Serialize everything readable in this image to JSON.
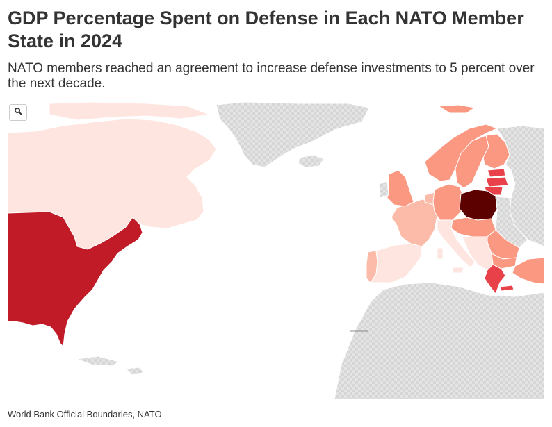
{
  "header": {
    "title": "GDP Percentage Spent on Defense in Each NATO Member State in 2024",
    "subtitle": "NATO members reached an agreement to increase defense investments to 5 percent over the next decade."
  },
  "map": {
    "type": "choropleth",
    "colors": {
      "no_data": "#dddddd",
      "low": "#fee5e0",
      "low_mid": "#fcbba9",
      "mid": "#fa9882",
      "high": "#e8414a",
      "very_high": "#c01b27",
      "highest": "#5c0000"
    },
    "regions": [
      {
        "name": "United States",
        "shade": "very_high"
      },
      {
        "name": "Canada",
        "shade": "low"
      },
      {
        "name": "Poland",
        "shade": "highest"
      },
      {
        "name": "Latvia",
        "shade": "high"
      },
      {
        "name": "Lithuania",
        "shade": "high"
      },
      {
        "name": "Estonia",
        "shade": "high"
      },
      {
        "name": "Greece",
        "shade": "high"
      },
      {
        "name": "Finland",
        "shade": "mid"
      },
      {
        "name": "United Kingdom",
        "shade": "mid"
      },
      {
        "name": "Sweden",
        "shade": "mid"
      },
      {
        "name": "Norway",
        "shade": "mid"
      },
      {
        "name": "Germany",
        "shade": "mid"
      },
      {
        "name": "Romania",
        "shade": "mid"
      },
      {
        "name": "Turkey",
        "shade": "mid"
      },
      {
        "name": "France",
        "shade": "low_mid"
      },
      {
        "name": "Italy",
        "shade": "low"
      },
      {
        "name": "Spain",
        "shade": "low"
      },
      {
        "name": "Portugal",
        "shade": "low_mid"
      },
      {
        "name": "Greenland",
        "shade": "no_data"
      }
    ],
    "search_icon": "search-icon"
  },
  "footer": {
    "source": "World Bank Official Boundaries, NATO"
  }
}
